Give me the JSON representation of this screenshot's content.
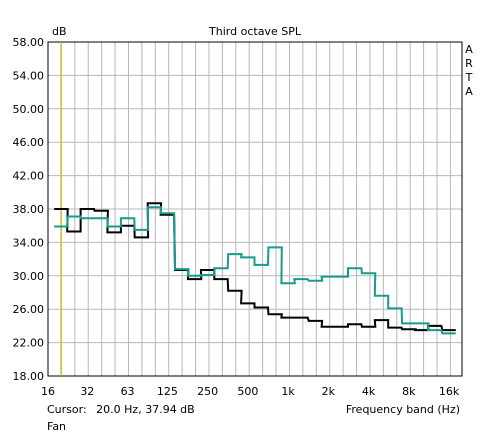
{
  "chart_data": {
    "type": "line",
    "title": "Third octave SPL",
    "ylabel": "dB",
    "xlabel": "Frequency band (Hz)",
    "side_label": [
      "A",
      "R",
      "T",
      "A"
    ],
    "y_ticks": [
      "58.00",
      "54.00",
      "50.00",
      "46.00",
      "42.00",
      "38.00",
      "34.00",
      "30.00",
      "26.00",
      "22.00",
      "18.00"
    ],
    "ylim": [
      18,
      58
    ],
    "x_scale": "log",
    "xlim": [
      16,
      20000
    ],
    "x_ticks": [
      {
        "f": 16,
        "label": "16"
      },
      {
        "f": 31.5,
        "label": "32"
      },
      {
        "f": 63,
        "label": "63"
      },
      {
        "f": 125,
        "label": "125"
      },
      {
        "f": 250,
        "label": "250"
      },
      {
        "f": 500,
        "label": "500"
      },
      {
        "f": 1000,
        "label": "1k"
      },
      {
        "f": 2000,
        "label": "2k"
      },
      {
        "f": 4000,
        "label": "4k"
      },
      {
        "f": 8000,
        "label": "8k"
      },
      {
        "f": 16000,
        "label": "16k"
      }
    ],
    "grid": true,
    "bands": [
      20,
      25,
      31.5,
      40,
      50,
      63,
      80,
      100,
      125,
      160,
      200,
      250,
      315,
      400,
      500,
      630,
      800,
      1000,
      1250,
      1600,
      2000,
      2500,
      3150,
      4000,
      5000,
      6300,
      8000,
      10000,
      12500,
      16000
    ],
    "series": [
      {
        "color": "#000000",
        "values": [
          38.0,
          35.3,
          38.0,
          37.8,
          35.2,
          36.0,
          34.6,
          38.7,
          37.3,
          30.7,
          29.6,
          30.7,
          29.6,
          28.2,
          26.7,
          26.2,
          25.4,
          25.0,
          25.0,
          24.6,
          23.9,
          23.9,
          24.2,
          23.9,
          24.7,
          23.8,
          23.6,
          23.5,
          24.0,
          23.5
        ]
      },
      {
        "color": "#1a9a8c",
        "values": [
          35.9,
          37.1,
          36.9,
          36.9,
          35.9,
          36.9,
          35.5,
          38.2,
          37.5,
          30.8,
          30.0,
          30.1,
          30.9,
          32.6,
          32.2,
          31.3,
          33.4,
          29.1,
          29.6,
          29.4,
          29.9,
          29.9,
          30.9,
          30.3,
          27.6,
          26.1,
          24.3,
          24.3,
          23.5,
          23.1
        ]
      }
    ],
    "cursor_marker": {
      "f": 20,
      "color": "#d4c000"
    }
  },
  "status": {
    "cursor_label": "Cursor:",
    "cursor_value": "20.0 Hz, 37.94 dB",
    "xaxis_label": "Frequency band (Hz)",
    "footer": "Fan"
  }
}
